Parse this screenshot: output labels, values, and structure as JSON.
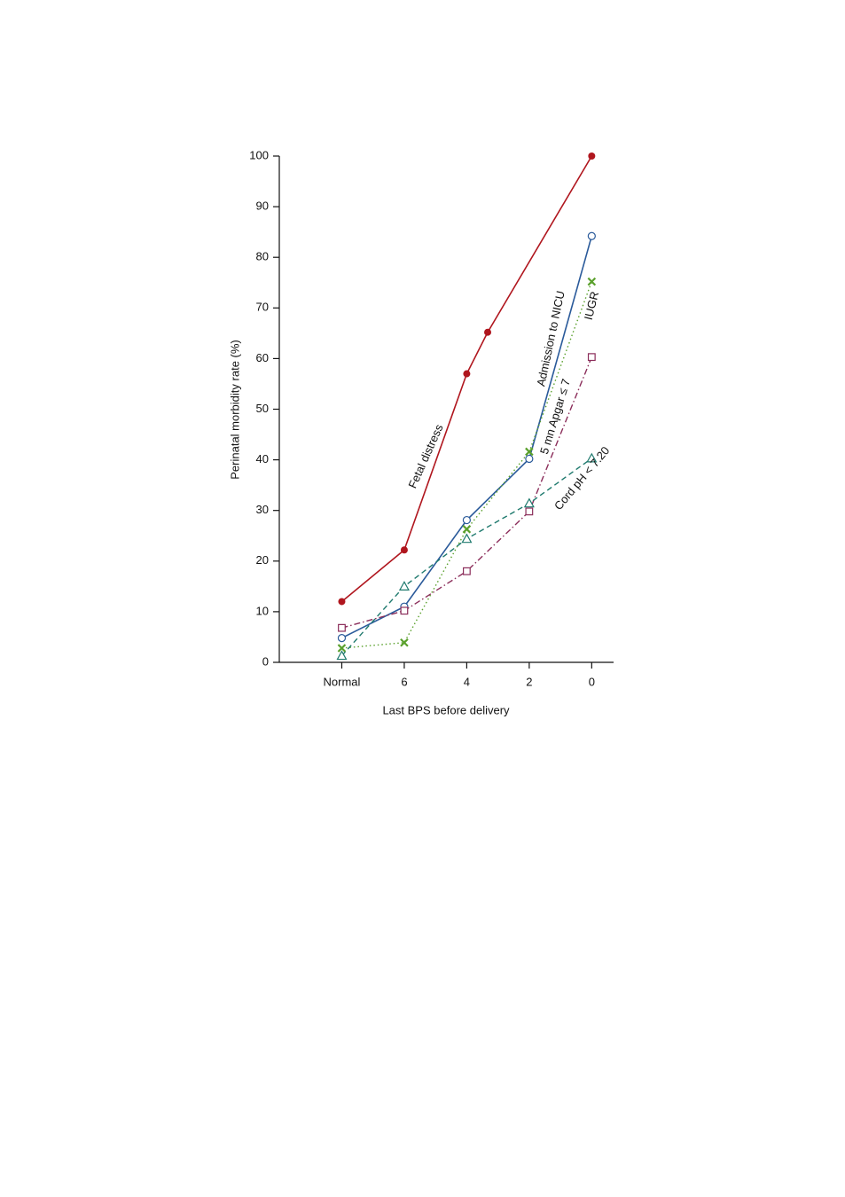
{
  "chart_data": {
    "type": "line",
    "ylabel": "Perinatal morbidity rate (%)",
    "xlabel": "Last BPS before delivery",
    "xlim": [
      10,
      -0.7
    ],
    "xticks": [
      {
        "value": 8,
        "label": "Normal"
      },
      6,
      4,
      2,
      0
    ],
    "ylim": [
      0,
      100
    ],
    "yticks": [
      0,
      10,
      20,
      30,
      40,
      50,
      60,
      70,
      80,
      90,
      100
    ],
    "series": [
      {
        "name": "Fetal distress",
        "color": "#b0161e",
        "marker": "filled-circle",
        "dash": "solid",
        "x": [
          8,
          6,
          4,
          3.33,
          0
        ],
        "values": [
          12,
          22.2,
          57,
          65.2,
          100
        ]
      },
      {
        "name": "Admission to NICU",
        "color": "#2a5a9a",
        "marker": "circle",
        "dash": "solid",
        "x": [
          8,
          6,
          4,
          2,
          0
        ],
        "values": [
          4.8,
          11,
          28.1,
          40.2,
          84.2
        ]
      },
      {
        "name": "IUGR",
        "color": "#5aa02c",
        "marker": "cross",
        "dash": "dotted",
        "x": [
          8,
          6,
          4,
          2,
          0
        ],
        "values": [
          2.8,
          3.9,
          26.3,
          41.6,
          75.2
        ]
      },
      {
        "name": "5 mn Apgar ≤ 7",
        "color": "#8b2d5a",
        "marker": "square",
        "dash": "dashdot",
        "x": [
          8,
          6,
          4,
          2,
          0
        ],
        "values": [
          6.8,
          10.2,
          18,
          29.8,
          60.3
        ]
      },
      {
        "name": "Cord pH < 7.20",
        "color": "#1f7a6e",
        "marker": "triangle",
        "dash": "dashed",
        "x": [
          8,
          6,
          4,
          2,
          0
        ],
        "values": [
          1.3,
          15,
          24.4,
          31.4,
          40.3
        ]
      }
    ]
  }
}
